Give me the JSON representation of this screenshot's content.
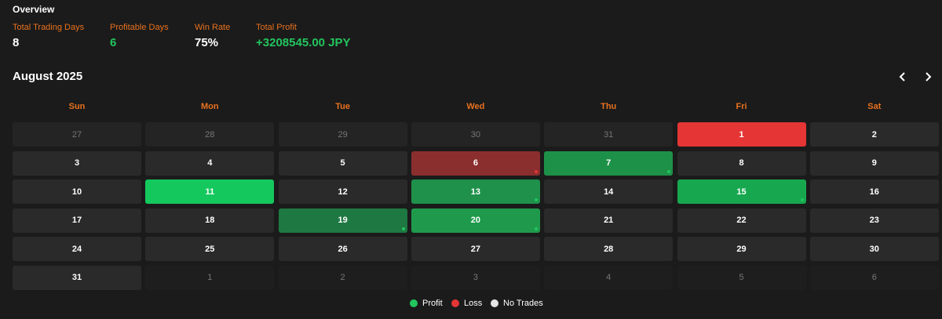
{
  "overview": {
    "title": "Overview",
    "stats": [
      {
        "label": "Total Trading Days",
        "value": "8",
        "color": "#ffffff"
      },
      {
        "label": "Profitable Days",
        "value": "6",
        "color": "#22c55e"
      },
      {
        "label": "Win Rate",
        "value": "75%",
        "color": "#ffffff"
      },
      {
        "label": "Total Profit",
        "value": "+3208545.00 JPY",
        "color": "#22c55e"
      }
    ]
  },
  "calendar": {
    "month": "August 2025",
    "weekdays": [
      "Sun",
      "Mon",
      "Tue",
      "Wed",
      "Thu",
      "Fri",
      "Sat"
    ],
    "weeks": [
      [
        {
          "day": "27",
          "other_month": true
        },
        {
          "day": "28",
          "other_month": true
        },
        {
          "day": "29",
          "other_month": true
        },
        {
          "day": "30",
          "other_month": true
        },
        {
          "day": "31",
          "other_month": true
        },
        {
          "day": "1",
          "color": "#e53535"
        },
        {
          "day": "2"
        }
      ],
      [
        {
          "day": "3"
        },
        {
          "day": "4"
        },
        {
          "day": "5"
        },
        {
          "day": "6",
          "color": "#8b2e2e",
          "dot": "#e53535"
        },
        {
          "day": "7",
          "color": "#1e9148",
          "dot": "#22c55e"
        },
        {
          "day": "8"
        },
        {
          "day": "9"
        }
      ],
      [
        {
          "day": "10"
        },
        {
          "day": "11",
          "color": "#14c85d"
        },
        {
          "day": "12"
        },
        {
          "day": "13",
          "color": "#1f914b",
          "dot": "#22c55e"
        },
        {
          "day": "14"
        },
        {
          "day": "15",
          "color": "#17a84f",
          "dot": "#22c55e"
        },
        {
          "day": "16"
        }
      ],
      [
        {
          "day": "17"
        },
        {
          "day": "18"
        },
        {
          "day": "19",
          "color": "#1e7842",
          "dot": "#22c55e"
        },
        {
          "day": "20",
          "color": "#1f9a4c",
          "dot": "#22c55e"
        },
        {
          "day": "21"
        },
        {
          "day": "22"
        },
        {
          "day": "23"
        }
      ],
      [
        {
          "day": "24"
        },
        {
          "day": "25"
        },
        {
          "day": "26"
        },
        {
          "day": "27"
        },
        {
          "day": "28"
        },
        {
          "day": "29"
        },
        {
          "day": "30"
        }
      ],
      [
        {
          "day": "31"
        },
        {
          "day": "1",
          "other_month": true
        },
        {
          "day": "2",
          "other_month": true
        },
        {
          "day": "3",
          "other_month": true
        },
        {
          "day": "4",
          "other_month": true
        },
        {
          "day": "5",
          "other_month": true
        },
        {
          "day": "6",
          "other_month": true
        }
      ]
    ]
  },
  "legend": [
    {
      "label": "Profit",
      "color": "#22c55e"
    },
    {
      "label": "Loss",
      "color": "#e53535"
    },
    {
      "label": "No Trades",
      "color": "#e5e5e5"
    }
  ]
}
